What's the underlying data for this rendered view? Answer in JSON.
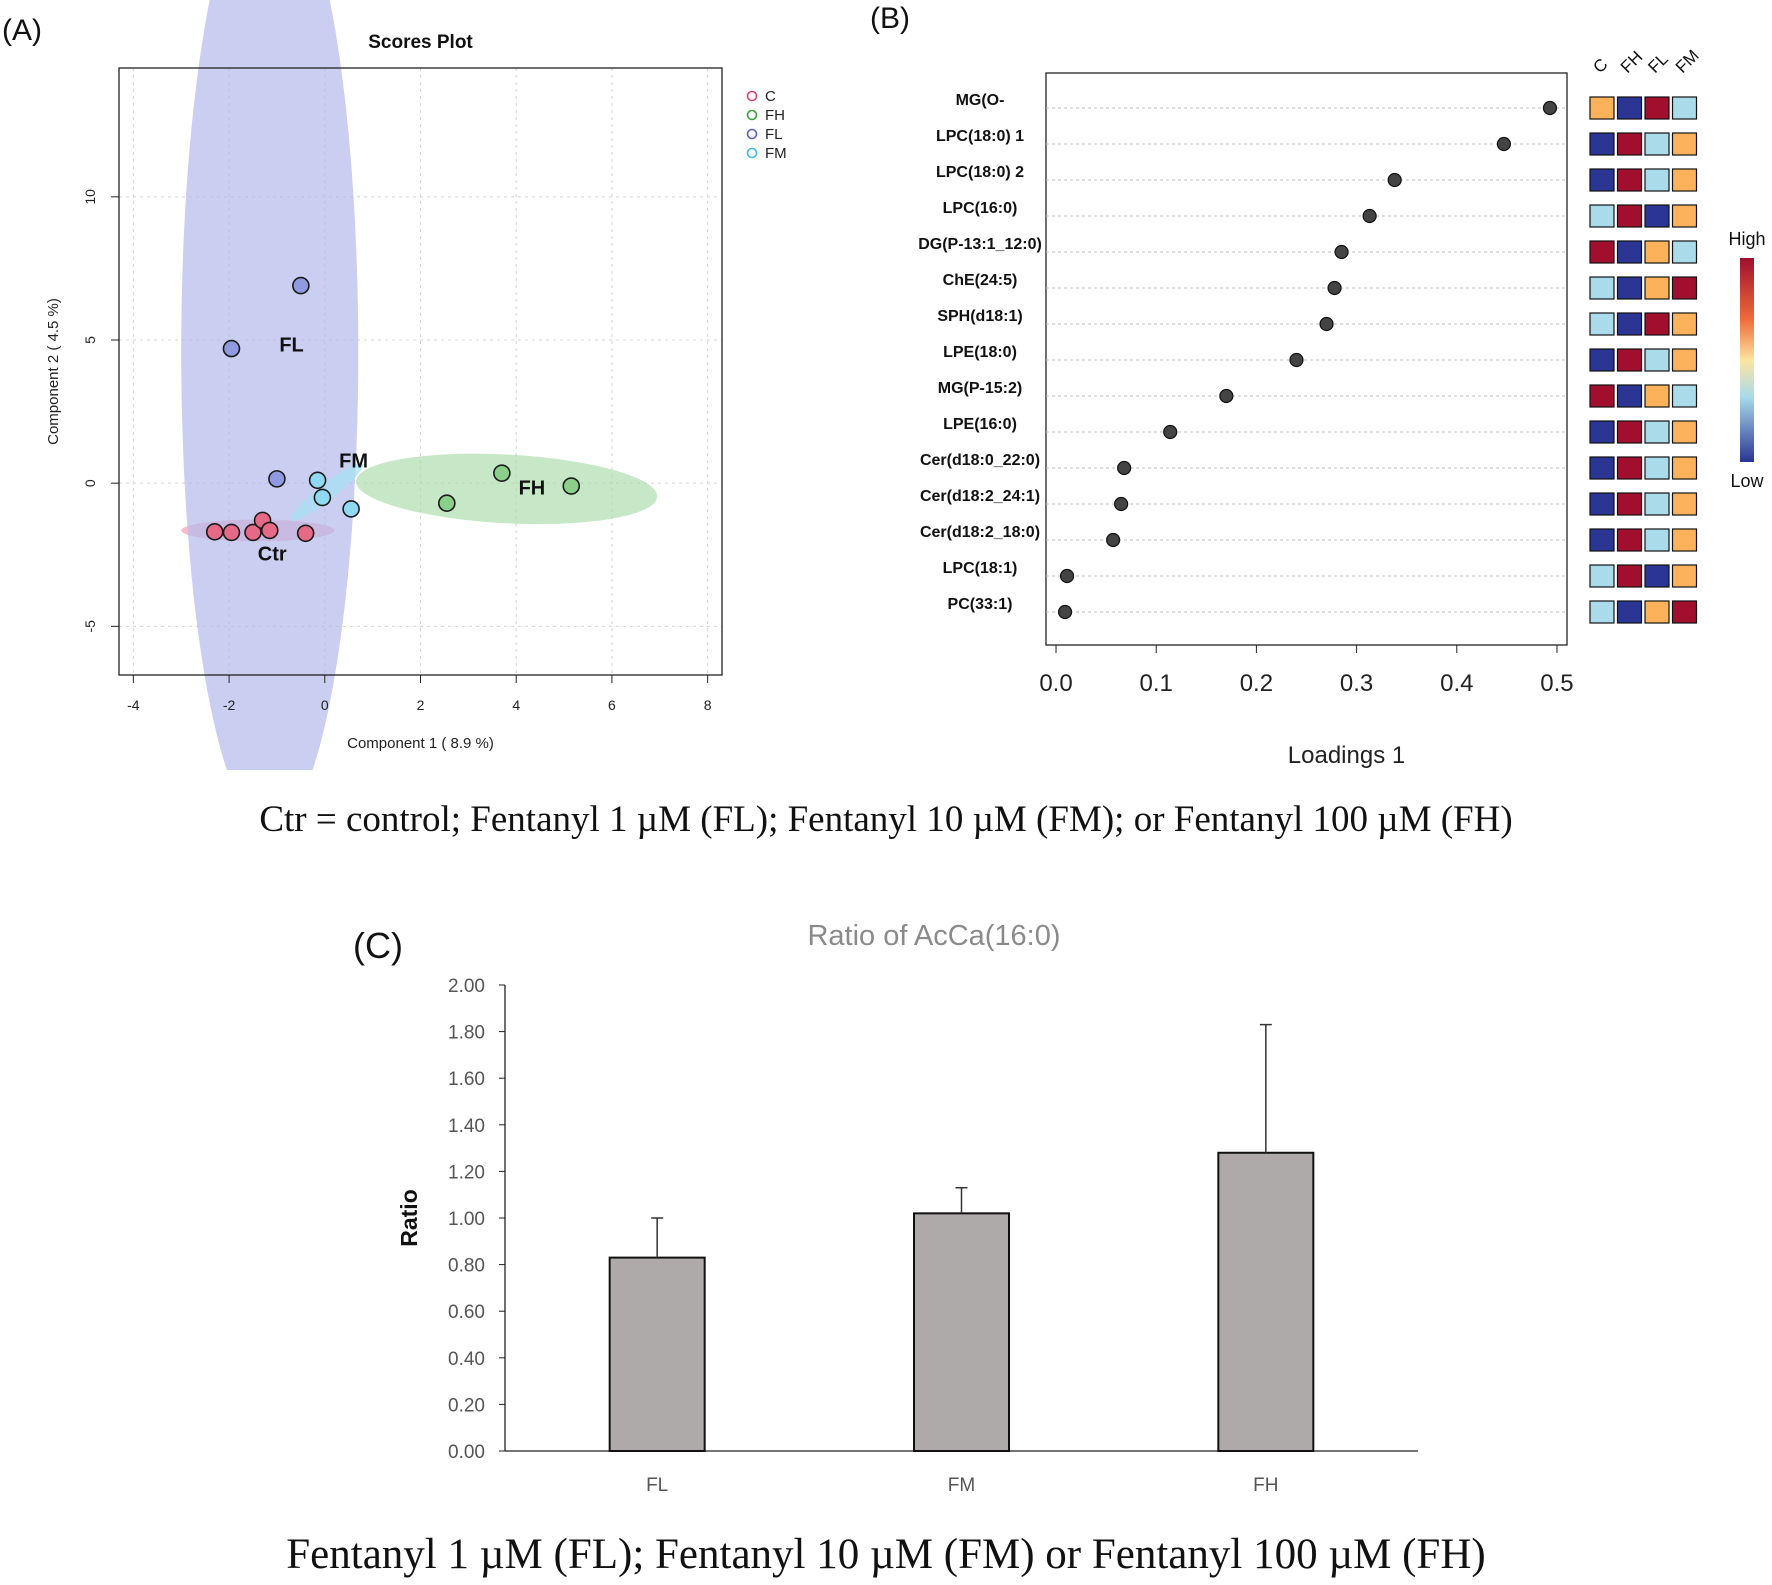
{
  "panel_labels": {
    "a": "(A)",
    "b": "(B)",
    "c": "(C)"
  },
  "caption_ab": "Ctr = control; Fentanyl 1 µM (FL); Fentanyl 10 µM (FM); or Fentanyl 100 µM (FH)",
  "caption_c": "Fentanyl 1 µM (FL); Fentanyl 10 µM (FM) or Fentanyl 100 µM (FH)",
  "chart_data": [
    {
      "id": "scores",
      "type": "scatter",
      "title": "Scores Plot",
      "xlabel": "Component 1 ( 8.9 %)",
      "ylabel": "Component 2 ( 4.5 %)",
      "xlim": [
        -4.3,
        8.3
      ],
      "ylim": [
        -6.7,
        14.5
      ],
      "x_ticks": [
        -4,
        -2,
        0,
        2,
        4,
        6,
        8
      ],
      "y_ticks": [
        -5,
        0,
        5,
        10
      ],
      "x_tick_labels": [
        "-4",
        "-2",
        "0",
        "2",
        "4",
        "6",
        "8"
      ],
      "y_tick_labels": [
        "-5",
        "0",
        "5",
        "10"
      ],
      "grid": true,
      "legend_position": "top-right",
      "series": [
        {
          "name": "C",
          "label": "Ctr",
          "color": "#e0436b",
          "fill": "#e66a87",
          "points": [
            [
              -2.3,
              -1.7
            ],
            [
              -1.95,
              -1.72
            ],
            [
              -1.5,
              -1.72
            ],
            [
              -1.3,
              -1.3
            ],
            [
              -1.15,
              -1.65
            ],
            [
              -0.4,
              -1.75
            ]
          ],
          "ellipse": {
            "cx": -1.4,
            "cy": -1.65,
            "rx": 1.6,
            "ry": 0.38,
            "angle": 0,
            "color": "#f3a0b4"
          },
          "label_pos": [
            -1.4,
            -2.7
          ]
        },
        {
          "name": "FH",
          "label": "FH",
          "color": "#3ca23c",
          "fill": "#8ad08a",
          "points": [
            [
              2.55,
              -0.7
            ],
            [
              3.7,
              0.35
            ],
            [
              5.15,
              -0.1
            ]
          ],
          "ellipse": {
            "cx": 3.8,
            "cy": -0.2,
            "rx": 3.15,
            "ry": 1.2,
            "angle": -3,
            "color": "#aedeae"
          },
          "label_pos": [
            4.05,
            -0.4
          ]
        },
        {
          "name": "FL",
          "label": "FL",
          "color": "#5563c8",
          "fill": "#8f9ae0",
          "points": [
            [
              -0.5,
              6.9
            ],
            [
              -1.95,
              4.7
            ],
            [
              -1.0,
              0.15
            ]
          ],
          "ellipse": {
            "cx": -1.15,
            "cy": 4.6,
            "rx": 1.85,
            "ry": 16.7,
            "angle": 0,
            "color": "#b3b9ea"
          },
          "label_pos": [
            -0.95,
            4.6
          ]
        },
        {
          "name": "FM",
          "label": "FM",
          "color": "#3cb9e4",
          "fill": "#8fdaf2",
          "points": [
            [
              -0.15,
              0.1
            ],
            [
              -0.05,
              -0.5
            ],
            [
              0.55,
              -0.9
            ]
          ],
          "ellipse": {
            "cx": 0.05,
            "cy": -0.3,
            "rx": 0.95,
            "ry": 0.28,
            "angle": 38,
            "color": "#a4e2f4"
          },
          "label_pos": [
            0.3,
            0.55
          ]
        }
      ]
    },
    {
      "id": "loadings",
      "type": "scatter",
      "xlabel": "Loadings 1",
      "xlim": [
        -0.01,
        0.51
      ],
      "x_ticks": [
        0.0,
        0.1,
        0.2,
        0.3,
        0.4,
        0.5
      ],
      "x_tick_labels": [
        "0.0",
        "0.1",
        "0.2",
        "0.3",
        "0.4",
        "0.5"
      ],
      "heatmap_columns": [
        "C",
        "FH",
        "FL",
        "FM"
      ],
      "colorbar": {
        "high": "High",
        "low": "Low"
      },
      "level_colors": {
        "low": "#2a3594",
        "mid_low": "#a9dbea",
        "mid_high": "#fbb25a",
        "high": "#a10e2e"
      },
      "rows": [
        {
          "name": "MG(O-",
          "loading": 0.493,
          "levels": [
            "mid_high",
            "low",
            "high",
            "mid_low"
          ]
        },
        {
          "name": "LPC(18:0) 1",
          "loading": 0.447,
          "levels": [
            "low",
            "high",
            "mid_low",
            "mid_high"
          ]
        },
        {
          "name": "LPC(18:0) 2",
          "loading": 0.338,
          "levels": [
            "low",
            "high",
            "mid_low",
            "mid_high"
          ]
        },
        {
          "name": "LPC(16:0)",
          "loading": 0.313,
          "levels": [
            "mid_low",
            "high",
            "low",
            "mid_high"
          ]
        },
        {
          "name": "DG(P-13:1_12:0)",
          "loading": 0.285,
          "levels": [
            "high",
            "low",
            "mid_high",
            "mid_low"
          ]
        },
        {
          "name": "ChE(24:5)",
          "loading": 0.278,
          "levels": [
            "mid_low",
            "low",
            "mid_high",
            "high"
          ]
        },
        {
          "name": "SPH(d18:1)",
          "loading": 0.27,
          "levels": [
            "mid_low",
            "low",
            "high",
            "mid_high"
          ]
        },
        {
          "name": "LPE(18:0)",
          "loading": 0.24,
          "levels": [
            "low",
            "high",
            "mid_low",
            "mid_high"
          ]
        },
        {
          "name": "MG(P-15:2)",
          "loading": 0.17,
          "levels": [
            "high",
            "low",
            "mid_high",
            "mid_low"
          ]
        },
        {
          "name": "LPE(16:0)",
          "loading": 0.114,
          "levels": [
            "low",
            "high",
            "mid_low",
            "mid_high"
          ]
        },
        {
          "name": "Cer(d18:0_22:0)",
          "loading": 0.068,
          "levels": [
            "low",
            "high",
            "mid_low",
            "mid_high"
          ]
        },
        {
          "name": "Cer(d18:2_24:1)",
          "loading": 0.065,
          "levels": [
            "low",
            "high",
            "mid_low",
            "mid_high"
          ]
        },
        {
          "name": "Cer(d18:2_18:0)",
          "loading": 0.057,
          "levels": [
            "low",
            "high",
            "mid_low",
            "mid_high"
          ]
        },
        {
          "name": "LPC(18:1)",
          "loading": 0.011,
          "levels": [
            "mid_low",
            "high",
            "low",
            "mid_high"
          ]
        },
        {
          "name": "PC(33:1)",
          "loading": 0.009,
          "levels": [
            "mid_low",
            "low",
            "mid_high",
            "high"
          ]
        }
      ]
    },
    {
      "id": "ratio",
      "type": "bar",
      "title": "Ratio of AcCa(16:0)",
      "ylabel": "Ratio",
      "xlabel": "",
      "categories": [
        "FL",
        "FM",
        "FH"
      ],
      "values": [
        0.83,
        1.02,
        1.28
      ],
      "errors": [
        0.17,
        0.11,
        0.55
      ],
      "ylim": [
        0,
        2.0
      ],
      "y_ticks": [
        0,
        0.2,
        0.4,
        0.6,
        0.8,
        1.0,
        1.2,
        1.4,
        1.6,
        1.8,
        2.0
      ],
      "y_tick_labels": [
        "0.00",
        "0.20",
        "0.40",
        "0.60",
        "0.80",
        "1.00",
        "1.20",
        "1.40",
        "1.60",
        "1.80",
        "2.00"
      ],
      "bar_color": "#aeaaa9",
      "grid": false
    }
  ]
}
